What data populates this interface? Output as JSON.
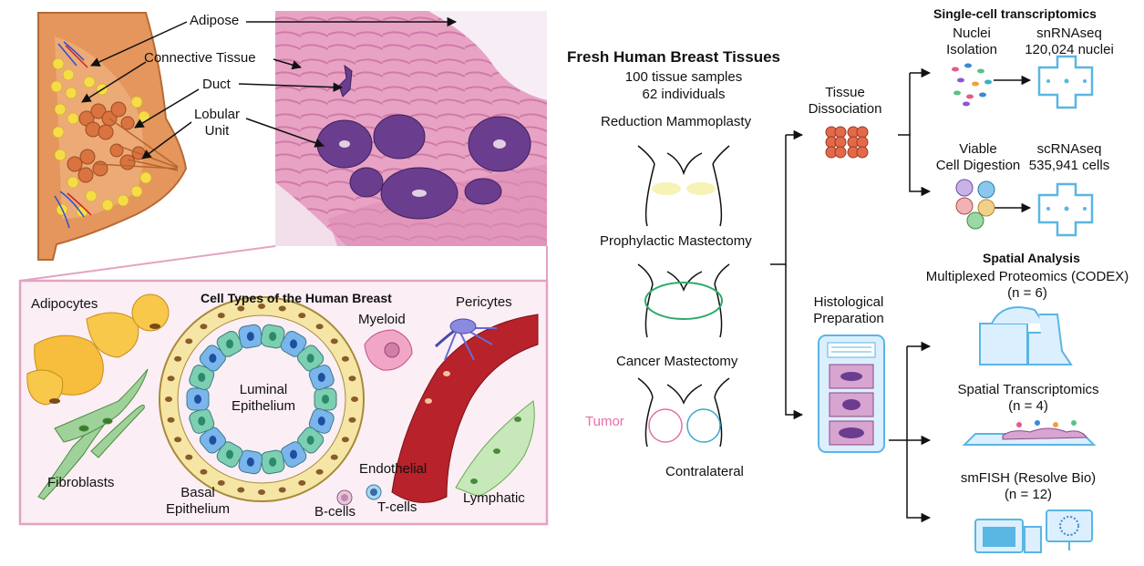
{
  "anatomy": {
    "labels": {
      "adipose": "Adipose",
      "connective": "Connective Tissue",
      "duct": "Duct",
      "lobular_l1": "Lobular",
      "lobular_l2": "Unit"
    }
  },
  "cell_types": {
    "title": "Cell Types of the Human Breast",
    "adipocytes": "Adipocytes",
    "fibroblasts": "Fibroblasts",
    "luminal_l1": "Luminal",
    "luminal_l2": "Epithelium",
    "basal_l1": "Basal",
    "basal_l2": "Epithelium",
    "myeloid": "Myeloid",
    "pericytes": "Pericytes",
    "endothelial": "Endothelial",
    "bcells": "B-cells",
    "tcells": "T-cells",
    "lymphatic": "Lymphatic"
  },
  "tissues": {
    "title": "Fresh Human Breast Tissues",
    "samples": "100 tissue samples",
    "individuals": "62 individuals",
    "reduction": "Reduction Mammoplasty",
    "prophylactic": "Prophylactic Mastectomy",
    "cancer": "Cancer Mastectomy",
    "tumor": "Tumor",
    "contralateral": "Contralateral"
  },
  "processing": {
    "dissociation_l1": "Tissue",
    "dissociation_l2": "Dissociation",
    "histo_l1": "Histological",
    "histo_l2": "Preparation"
  },
  "single_cell": {
    "title": "Single-cell transcriptomics",
    "nuclei_l1": "Nuclei",
    "nuclei_l2": "Isolation",
    "sn_l1": "snRNAseq",
    "sn_l2": "120,024 nuclei",
    "viable_l1": "Viable",
    "viable_l2": "Cell Digestion",
    "sc_l1": "scRNAseq",
    "sc_l2": "535,941 cells"
  },
  "spatial": {
    "title": "Spatial Analysis",
    "codex_l1": "Multiplexed Proteomics (CODEX)",
    "codex_l2": "(n = 6)",
    "st_l1": "Spatial Transcriptomics",
    "st_l2": "(n = 4)",
    "fish_l1": "smFISH (Resolve Bio)",
    "fish_l2": "(n = 12)"
  },
  "colors": {
    "tissue_pink": "#d9729d",
    "panel_border": "#e3a3c2",
    "panel_fill": "#fbeef4",
    "tumor": "#e66fa8",
    "contralateral": "#39a9c9",
    "prophylactic": "#2eaa6a",
    "device_blue": "#5ab6e3"
  }
}
